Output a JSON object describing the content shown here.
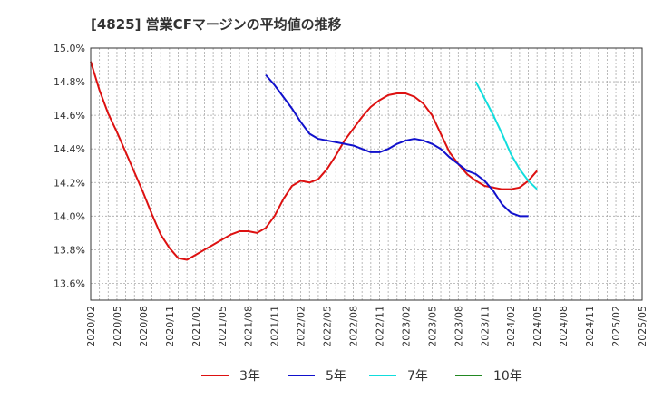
{
  "chart_data": {
    "type": "line",
    "title": "[4825]  営業CFマージンの平均値の推移",
    "xlabel": "",
    "ylabel": "",
    "ylim": [
      13.5,
      15.0
    ],
    "y_ticks": [
      13.6,
      13.8,
      14.0,
      14.2,
      14.4,
      14.6,
      14.8,
      15.0
    ],
    "y_tick_labels": [
      "13.6%",
      "13.8%",
      "14.0%",
      "14.2%",
      "14.4%",
      "14.6%",
      "14.8%",
      "15.0%"
    ],
    "x_start": "2020/02",
    "x_end": "2025/05",
    "x_tick_labels": [
      "2020/02",
      "2020/05",
      "2020/08",
      "2020/11",
      "2021/02",
      "2021/05",
      "2021/08",
      "2021/11",
      "2022/02",
      "2022/05",
      "2022/08",
      "2022/11",
      "2023/02",
      "2023/05",
      "2023/08",
      "2023/11",
      "2024/02",
      "2024/05",
      "2024/08",
      "2024/11",
      "2025/02",
      "2025/05"
    ],
    "grid": true,
    "legend_position": "bottom",
    "series": [
      {
        "name": "3年",
        "color": "#dd1111",
        "start": "2020/02",
        "values": [
          14.92,
          14.75,
          14.61,
          14.5,
          14.38,
          14.26,
          14.14,
          14.01,
          13.89,
          13.81,
          13.75,
          13.74,
          13.77,
          13.8,
          13.83,
          13.86,
          13.89,
          13.91,
          13.91,
          13.9,
          13.93,
          14.0,
          14.1,
          14.18,
          14.21,
          14.2,
          14.22,
          14.28,
          14.36,
          14.45,
          14.52,
          14.59,
          14.65,
          14.69,
          14.72,
          14.73,
          14.73,
          14.71,
          14.67,
          14.6,
          14.49,
          14.38,
          14.31,
          14.25,
          14.21,
          14.18,
          14.17,
          14.16,
          14.16,
          14.17,
          14.21,
          14.27
        ]
      },
      {
        "name": "5年",
        "color": "#1111cc",
        "start": "2021/10",
        "values": [
          14.84,
          14.78,
          14.71,
          14.64,
          14.56,
          14.49,
          14.46,
          14.45,
          14.44,
          14.43,
          14.42,
          14.4,
          14.38,
          14.38,
          14.4,
          14.43,
          14.45,
          14.46,
          14.45,
          14.43,
          14.4,
          14.35,
          14.31,
          14.27,
          14.25,
          14.21,
          14.15,
          14.07,
          14.02,
          14.0,
          14.0
        ]
      },
      {
        "name": "7年",
        "color": "#11dddd",
        "start": "2023/10",
        "values": [
          14.8,
          14.7,
          14.6,
          14.49,
          14.37,
          14.28,
          14.21,
          14.16
        ]
      },
      {
        "name": "10年",
        "color": "#228822",
        "start": "2024/05",
        "values": []
      }
    ]
  }
}
